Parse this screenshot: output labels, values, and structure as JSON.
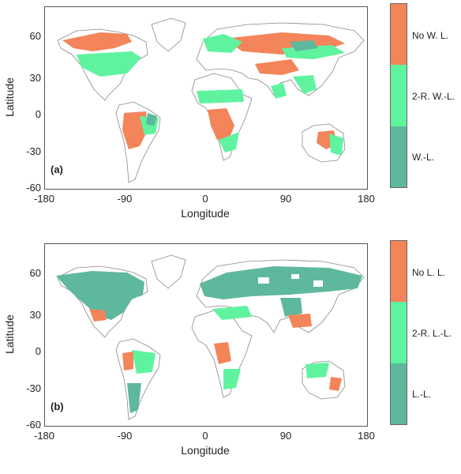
{
  "colors": {
    "orange": "#f4845a",
    "light_green": "#5ff3a0",
    "teal": "#5eb89e",
    "coast": "#888888"
  },
  "axes": {
    "x_label": "Longitude",
    "y_label": "Latitude",
    "x_ticks": [
      "-180",
      "-90",
      "0",
      "90",
      "180"
    ],
    "y_ticks": [
      "60",
      "30",
      "0",
      "-30",
      "-60"
    ]
  },
  "panels": [
    {
      "tag": "(a)",
      "legend": [
        "No W. L.",
        "2-R. W.-L.",
        "W.-L."
      ]
    },
    {
      "tag": "(b)",
      "legend": [
        "No L. L.",
        "2-R. L.-L.",
        "L.-L."
      ]
    }
  ]
}
